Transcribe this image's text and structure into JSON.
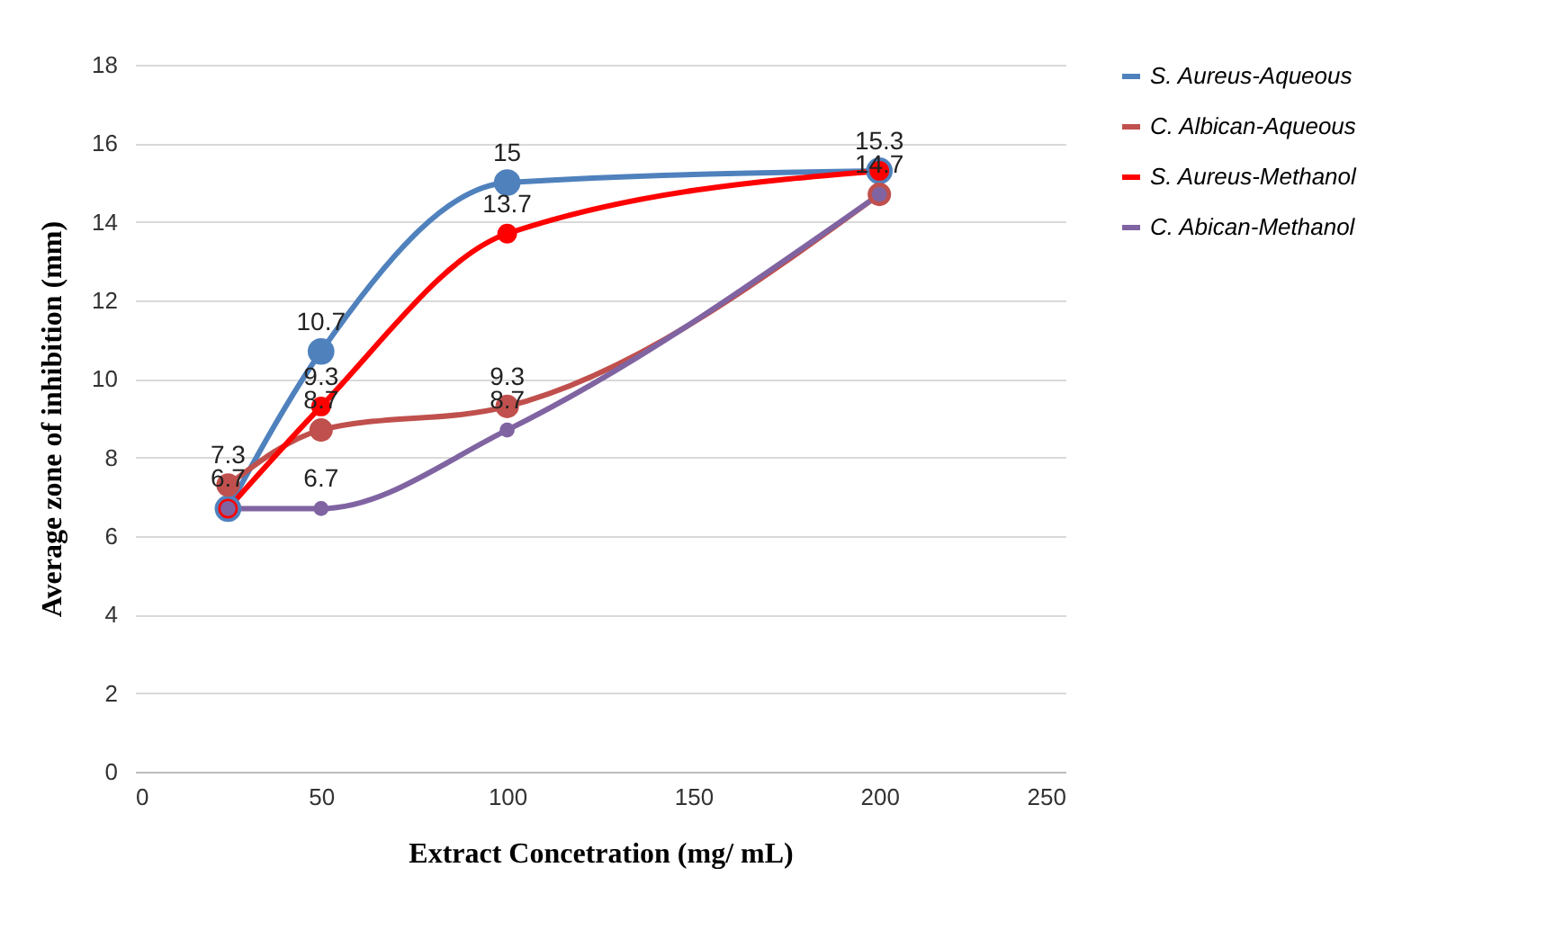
{
  "chart_data": {
    "type": "line",
    "xlabel": "Extract  Concetration (mg/ mL)",
    "ylabel": "Average zone of inhibition (mm)",
    "x": [
      25,
      50,
      100,
      200
    ],
    "series": [
      {
        "name": "S. Aureus-Aqueous",
        "color": "#4f81bd",
        "values": [
          6.7,
          10.7,
          15,
          15.3
        ],
        "value_labels": [
          "6.7",
          "10.7",
          "15",
          "15.3"
        ]
      },
      {
        "name": "C. Albican-Aqueous",
        "color": "#c0504d",
        "values": [
          7.3,
          8.7,
          9.3,
          14.7
        ],
        "value_labels": [
          "7.3",
          "8.7",
          "9.3",
          "14.7"
        ]
      },
      {
        "name": "S. Aureus-Methanol",
        "color": "#ff0000",
        "values": [
          6.7,
          9.3,
          13.7,
          15.3
        ],
        "value_labels": [
          null,
          "9.3",
          "13.7",
          null
        ]
      },
      {
        "name": "C. Abican-Methanol",
        "color": "#8064a2",
        "values": [
          6.7,
          6.7,
          8.7,
          14.7
        ],
        "value_labels": [
          null,
          "6.7",
          "8.7",
          null
        ]
      }
    ],
    "xlim": [
      0,
      250
    ],
    "xticks": [
      0,
      50,
      100,
      150,
      200,
      250
    ],
    "ylim": [
      0,
      18
    ],
    "yticks": [
      0,
      2,
      4,
      6,
      8,
      10,
      12,
      14,
      16,
      18
    ],
    "grid": "y",
    "legend": "right",
    "marker": "circle",
    "line_style": "solid"
  }
}
